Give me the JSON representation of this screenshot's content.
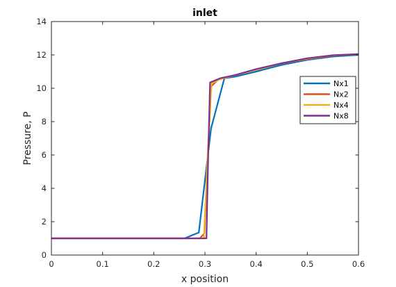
{
  "chart_data": {
    "type": "line",
    "title": "inlet",
    "xlabel": "x position",
    "ylabel": "Pressure, P",
    "xlim": [
      0,
      0.6
    ],
    "ylim": [
      0,
      14
    ],
    "xticks": [
      {
        "value": 0,
        "label": "0"
      },
      {
        "value": 0.1,
        "label": "0.1"
      },
      {
        "value": 0.2,
        "label": "0.2"
      },
      {
        "value": 0.3,
        "label": "0.3"
      },
      {
        "value": 0.4,
        "label": "0.4"
      },
      {
        "value": 0.5,
        "label": "0.5"
      },
      {
        "value": 0.6,
        "label": "0.6"
      }
    ],
    "yticks": [
      {
        "value": 0,
        "label": "0"
      },
      {
        "value": 2,
        "label": "2"
      },
      {
        "value": 4,
        "label": "4"
      },
      {
        "value": 6,
        "label": "6"
      },
      {
        "value": 8,
        "label": "8"
      },
      {
        "value": 10,
        "label": "10"
      },
      {
        "value": 12,
        "label": "12"
      },
      {
        "value": 14,
        "label": "14"
      }
    ],
    "grid": false,
    "legend_position": "right",
    "series": [
      {
        "name": "Nx1",
        "color": "#0072BD",
        "points": [
          [
            0,
            1
          ],
          [
            0.26,
            1
          ],
          [
            0.288,
            1.35
          ],
          [
            0.312,
            7.6
          ],
          [
            0.338,
            10.6
          ],
          [
            0.36,
            10.7
          ],
          [
            0.4,
            11.0
          ],
          [
            0.45,
            11.4
          ],
          [
            0.5,
            11.7
          ],
          [
            0.55,
            11.9
          ],
          [
            0.6,
            12.0
          ]
        ]
      },
      {
        "name": "Nx2",
        "color": "#D95319",
        "points": [
          [
            0,
            1
          ],
          [
            0.29,
            1
          ],
          [
            0.299,
            1.3
          ],
          [
            0.312,
            10.1
          ],
          [
            0.325,
            10.5
          ],
          [
            0.36,
            10.8
          ],
          [
            0.4,
            11.1
          ],
          [
            0.45,
            11.5
          ],
          [
            0.5,
            11.75
          ],
          [
            0.55,
            11.95
          ],
          [
            0.6,
            12.05
          ]
        ]
      },
      {
        "name": "Nx4",
        "color": "#EDB120",
        "points": [
          [
            0,
            1
          ],
          [
            0.298,
            1
          ],
          [
            0.306,
            6.5
          ],
          [
            0.313,
            10.3
          ],
          [
            0.33,
            10.55
          ],
          [
            0.36,
            10.8
          ],
          [
            0.4,
            11.1
          ],
          [
            0.45,
            11.5
          ],
          [
            0.5,
            11.78
          ],
          [
            0.55,
            11.97
          ],
          [
            0.6,
            12.05
          ]
        ]
      },
      {
        "name": "Nx8",
        "color": "#7E2F8E",
        "points": [
          [
            0,
            1
          ],
          [
            0.303,
            1
          ],
          [
            0.306,
            5.5
          ],
          [
            0.31,
            10.35
          ],
          [
            0.33,
            10.6
          ],
          [
            0.36,
            10.8
          ],
          [
            0.4,
            11.15
          ],
          [
            0.45,
            11.5
          ],
          [
            0.5,
            11.8
          ],
          [
            0.55,
            11.98
          ],
          [
            0.6,
            12.05
          ]
        ]
      }
    ]
  }
}
